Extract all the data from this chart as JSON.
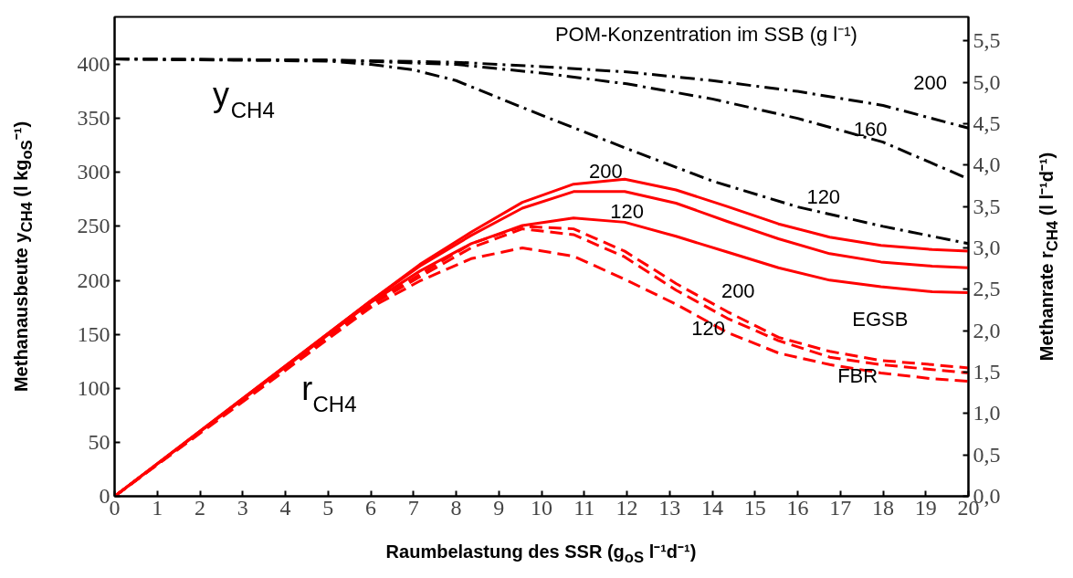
{
  "chart_data": {
    "type": "line",
    "xlabel": "Raumbelastung des SSR (g$_{oS}$ l⁻¹d⁻¹)",
    "ylabel": "Methanausbeute y$_{CH4}$ (l kg$_{oS}$⁻¹)",
    "y2label": "Methanrate r$_{CH4}$ (l l⁻¹d⁻¹)",
    "xlim": [
      0,
      20
    ],
    "xticks": [
      0,
      1,
      2,
      3,
      4,
      5,
      6,
      7,
      8,
      9,
      10,
      11,
      12,
      13,
      14,
      15,
      16,
      17,
      18,
      19,
      20
    ],
    "ylim": [
      0,
      444
    ],
    "yticks": [
      0,
      50,
      100,
      150,
      200,
      250,
      300,
      350,
      400
    ],
    "y2lim": [
      0,
      5.79
    ],
    "y2ticks": [
      {
        "value": 0,
        "label": "0,0"
      },
      {
        "value": 0.5,
        "label": "0,5"
      },
      {
        "value": 1,
        "label": "1,0"
      },
      {
        "value": 1.5,
        "label": "1,5"
      },
      {
        "value": 2,
        "label": "2,0"
      },
      {
        "value": 2.5,
        "label": "2,5"
      },
      {
        "value": 3,
        "label": "3,0"
      },
      {
        "value": 3.5,
        "label": "3,5"
      },
      {
        "value": 4,
        "label": "4,0"
      },
      {
        "value": 4.5,
        "label": "4,5"
      },
      {
        "value": 5,
        "label": "5,0"
      },
      {
        "value": 5.5,
        "label": "5,5"
      }
    ],
    "grid": false,
    "marker": "none",
    "series": [
      {
        "color": "#000000",
        "line_style": "dashdot",
        "x": [
          0,
          5,
          8,
          10,
          12,
          14,
          16,
          18,
          20
        ],
        "values": [
          405,
          404,
          402,
          398,
          393,
          385,
          375,
          362,
          341
        ]
      },
      {
        "color": "#000000",
        "line_style": "dashdot",
        "x": [
          0,
          5,
          8,
          10,
          12,
          14,
          16,
          18,
          20
        ],
        "values": [
          405,
          404,
          400,
          392,
          382,
          368,
          350,
          328,
          294
        ]
      },
      {
        "color": "#000000",
        "line_style": "dashdot",
        "x": [
          0,
          5,
          6,
          7,
          8,
          10,
          12,
          14,
          16,
          18,
          20
        ],
        "values": [
          405,
          403,
          400,
          395,
          385,
          353,
          322,
          292,
          268,
          250,
          234
        ]
      },
      {
        "color": "#ff0000",
        "line_style": "solid",
        "axis": "y2",
        "x": [
          0,
          6,
          7.15,
          8.35,
          9.55,
          10.75,
          11.95,
          13.15,
          14.35,
          15.55,
          16.75,
          17.95,
          19.15,
          20
        ],
        "values": [
          0,
          2.36,
          2.8,
          3.19,
          3.55,
          3.77,
          3.83,
          3.7,
          3.5,
          3.29,
          3.13,
          3.03,
          2.98,
          2.96
        ]
      },
      {
        "color": "#ff0000",
        "line_style": "solid",
        "axis": "y2",
        "x": [
          0,
          6,
          7.15,
          8.35,
          9.55,
          10.75,
          11.95,
          13.15,
          14.35,
          15.55,
          16.75,
          17.95,
          19.15,
          20
        ],
        "values": [
          0,
          2.36,
          2.78,
          3.15,
          3.48,
          3.68,
          3.68,
          3.54,
          3.32,
          3.11,
          2.93,
          2.83,
          2.78,
          2.76
        ]
      },
      {
        "color": "#ff0000",
        "line_style": "solid",
        "axis": "y2",
        "x": [
          0,
          6,
          7.15,
          8.35,
          9.55,
          10.75,
          11.95,
          13.15,
          14.35,
          15.55,
          16.75,
          17.95,
          19.15,
          20
        ],
        "values": [
          0,
          2.34,
          2.72,
          3.05,
          3.27,
          3.36,
          3.31,
          3.14,
          2.95,
          2.76,
          2.61,
          2.53,
          2.47,
          2.46
        ]
      },
      {
        "color": "#ff0000",
        "line_style": "dashed",
        "axis": "y2",
        "x": [
          0,
          6,
          7.15,
          8.35,
          9.55,
          10.75,
          11.95,
          13.15,
          14.35,
          15.55,
          16.75,
          17.95,
          19.15,
          20
        ],
        "values": [
          0,
          2.32,
          2.68,
          3.05,
          3.26,
          3.23,
          2.96,
          2.57,
          2.23,
          1.92,
          1.75,
          1.64,
          1.59,
          1.55
        ]
      },
      {
        "color": "#ff0000",
        "line_style": "dashed",
        "axis": "y2",
        "x": [
          0,
          6,
          7.15,
          8.35,
          9.55,
          10.75,
          11.95,
          13.15,
          14.35,
          15.55,
          16.75,
          17.95,
          19.15,
          20
        ],
        "values": [
          0,
          2.31,
          2.65,
          3.0,
          3.23,
          3.16,
          2.89,
          2.49,
          2.15,
          1.88,
          1.68,
          1.59,
          1.53,
          1.49
        ]
      },
      {
        "color": "#ff0000",
        "line_style": "dashed",
        "axis": "y2",
        "x": [
          0,
          6,
          7.15,
          8.35,
          9.55,
          10.75,
          11.95,
          13.15,
          14.35,
          15.55,
          16.75,
          17.95,
          19.15,
          20
        ],
        "values": [
          0,
          2.28,
          2.6,
          2.87,
          3.0,
          2.9,
          2.62,
          2.32,
          1.98,
          1.73,
          1.59,
          1.49,
          1.42,
          1.39
        ]
      }
    ],
    "annotations": [
      "POM-Konzentration im SSB (g l⁻¹)",
      "y$_{CH4}$",
      "r$_{CH4}$",
      "200",
      "160",
      "120",
      "200",
      "120",
      "200",
      "120",
      "EGSB",
      "FBR"
    ]
  }
}
